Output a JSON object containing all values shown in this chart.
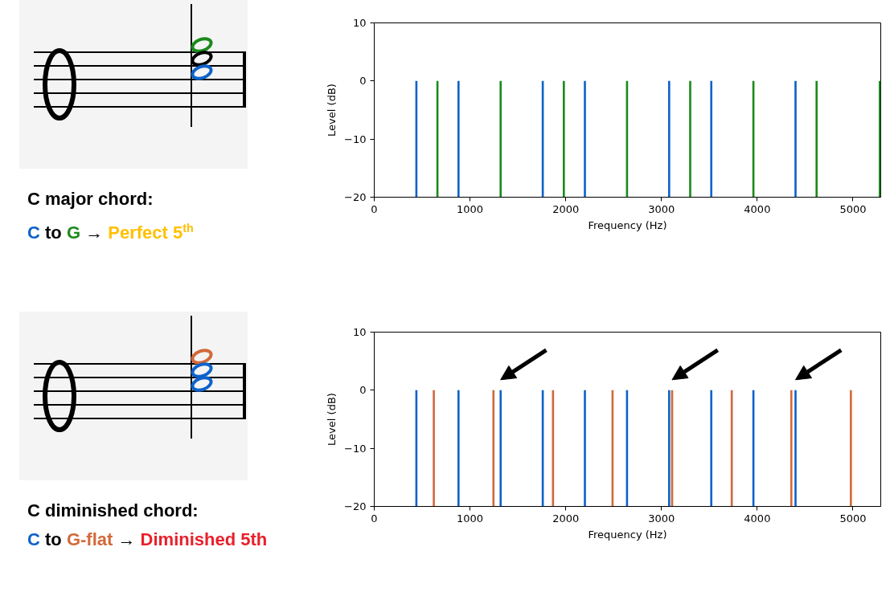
{
  "chart_data": [
    {
      "type": "bar",
      "xlabel": "Frequency (Hz)",
      "ylabel": "Level (dB)",
      "xlim": [
        0,
        5290
      ],
      "ylim": [
        -20,
        10
      ],
      "xticks": [
        0,
        1000,
        2000,
        3000,
        4000,
        5000
      ],
      "yticks": [
        -20,
        -10,
        0,
        10
      ],
      "grid": false,
      "series": [
        {
          "color": "#0d62c9",
          "x": [
            440,
            880,
            1760,
            2200,
            3080,
            3520,
            4400
          ],
          "base": [
            -20,
            -20,
            -20,
            -20,
            -20,
            -20,
            -20
          ],
          "values": [
            20,
            20,
            20,
            20,
            20,
            20,
            20
          ]
        },
        {
          "color": "#1a8a1a",
          "x": [
            660,
            1320,
            1980,
            2640,
            3300,
            3960,
            4620,
            5280
          ],
          "base": [
            -20,
            -20,
            -20,
            -20,
            -20,
            -20,
            -20,
            -20
          ],
          "values": [
            20,
            20,
            20,
            20,
            20,
            20,
            20,
            20
          ]
        }
      ],
      "annotations": [
        "C major chord:",
        "C to G → Perfect 5$^{th}$"
      ]
    },
    {
      "type": "bar",
      "xlabel": "Frequency (Hz)",
      "ylabel": "Level (dB)",
      "xlim": [
        0,
        5290
      ],
      "ylim": [
        -20,
        10
      ],
      "xticks": [
        0,
        1000,
        2000,
        3000,
        4000,
        5000
      ],
      "yticks": [
        -20,
        -10,
        0,
        10
      ],
      "grid": false,
      "series": [
        {
          "color": "#0d62c9",
          "x": [
            440,
            880,
            1320,
            1760,
            2200,
            2640,
            3080,
            3520,
            3960,
            4400
          ],
          "base": [
            -20,
            -20,
            -20,
            -20,
            -20,
            -20,
            -20,
            -20,
            -20,
            -20
          ],
          "values": [
            20,
            20,
            20,
            20,
            20,
            20,
            20,
            20,
            20,
            20
          ]
        },
        {
          "color": "#d2693a",
          "x": [
            622,
            1245,
            1867,
            2489,
            3111,
            3734,
            4356,
            4978
          ],
          "base": [
            -20,
            -20,
            -20,
            -20,
            -20,
            -20,
            -20,
            -20
          ],
          "values": [
            20,
            20,
            20,
            20,
            20,
            20,
            20,
            20
          ]
        }
      ],
      "annotations": [
        "C diminished chord:",
        "C to G-flat → Diminished 5th"
      ]
    }
  ]
}
